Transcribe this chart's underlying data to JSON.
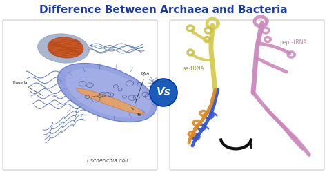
{
  "title": "Difference Between Archaea and Bacteria",
  "title_color": "#1a3aab",
  "title_fontsize": 11,
  "background_color": "#ffffff",
  "left_panel_bg": "#ffffff",
  "right_panel_bg": "#ffffff",
  "vs_circle_color": "#1a5cb8",
  "vs_text_color": "#ffffff",
  "vs_text": "Vs",
  "left_label": "Escherichia coli",
  "left_label_color": "#555555",
  "right_label1": "aa-tRNA",
  "right_label1_color": "#a0a030",
  "right_label2": "pept-tRNA",
  "right_label2_color": "#bb88aa",
  "panel_border": "#cccccc",
  "fig_width": 4.74,
  "fig_height": 2.62,
  "dpi": 100
}
